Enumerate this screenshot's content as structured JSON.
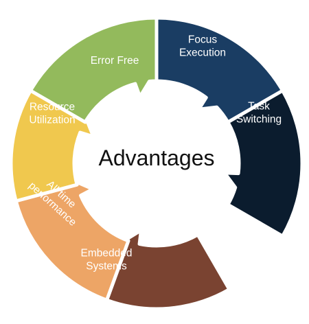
{
  "center": {
    "title": "Advantages"
  },
  "segments": [
    {
      "id": "error-free",
      "lines": [
        "Error Free"
      ],
      "color": "#93ba5c"
    },
    {
      "id": "focus-execution",
      "lines": [
        "Focus",
        "Execution"
      ],
      "color": "#1a3d63"
    },
    {
      "id": "task-switching",
      "lines": [
        "Task",
        "Switching"
      ],
      "color": "#0b1c2e"
    },
    {
      "id": "embedded-systems",
      "lines": [
        "Embedded",
        "Systems"
      ],
      "color": "#7a4331"
    },
    {
      "id": "all-time-performance",
      "lines": [
        "All time",
        "performance"
      ],
      "color": "#eda566"
    },
    {
      "id": "resource-utilization",
      "lines": [
        "Resource",
        "Utilization"
      ],
      "color": "#f0c84e"
    }
  ]
}
